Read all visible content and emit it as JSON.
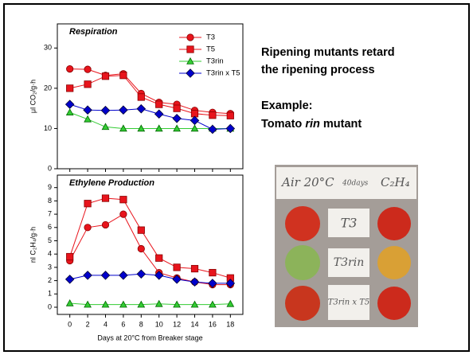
{
  "slide": {
    "heading": [
      "Ripening mutants retard",
      "the ripening process"
    ],
    "example": "Example:",
    "subject": [
      "Tomato ",
      "rin",
      " mutant"
    ]
  },
  "photo": {
    "labels": [
      "Air 20°C",
      "40days",
      "C₂H₄",
      "T3",
      "T3rin",
      "T3rin x T5"
    ]
  },
  "chart_data": [
    {
      "type": "line",
      "title": "Respiration",
      "y_label": "μl CO₂/g·h",
      "x": [
        0,
        2,
        4,
        6,
        8,
        10,
        12,
        14,
        16,
        18
      ],
      "xlim": [
        -1.4,
        19.4
      ],
      "xticks": [
        0,
        2,
        4,
        6,
        8,
        10,
        12,
        14,
        16,
        18
      ],
      "ylim": [
        0,
        36
      ],
      "yticks": [
        0,
        10,
        20,
        30
      ],
      "legend": "top-right",
      "series": [
        {
          "name": "T3",
          "color": "#e8141c",
          "marker": "circle",
          "values": [
            24.8,
            24.7,
            23.2,
            23.6,
            18.7,
            16.5,
            16,
            14.5,
            14,
            13.7
          ]
        },
        {
          "name": "T5",
          "color": "#e8141c",
          "marker": "square",
          "values": [
            20,
            21,
            23,
            23.2,
            17.8,
            16,
            15,
            13.7,
            13.3,
            13.2
          ]
        },
        {
          "name": "T3rin",
          "color": "#33cc33",
          "marker": "triangle",
          "values": [
            14,
            12.3,
            10.4,
            10,
            10,
            10,
            10,
            10,
            10,
            10
          ]
        },
        {
          "name": "T3rin x T5",
          "color": "#0000cc",
          "marker": "diamond",
          "values": [
            16,
            14.6,
            14.5,
            14.6,
            14.9,
            13.6,
            12.5,
            12,
            9.8,
            10
          ]
        }
      ]
    },
    {
      "type": "line",
      "title": "Ethylene Production",
      "y_label": "nl C₂H₄/g·h",
      "x_label": "Days at 20°C from Breaker stage",
      "x": [
        0,
        2,
        4,
        6,
        8,
        10,
        12,
        14,
        16,
        18
      ],
      "xlim": [
        -1.4,
        19.4
      ],
      "xticks": [
        0,
        2,
        4,
        6,
        8,
        10,
        12,
        14,
        16,
        18
      ],
      "ylim": [
        -0.54,
        9.94
      ],
      "yticks": [
        0,
        1,
        2,
        3,
        4,
        5,
        6,
        7,
        8,
        9
      ],
      "series": [
        {
          "color": "#e8141c",
          "marker": "circle",
          "values": [
            3.5,
            6.0,
            6.2,
            7.0,
            4.4,
            2.6,
            2.2,
            1.9,
            1.7,
            1.7
          ]
        },
        {
          "color": "#e8141c",
          "marker": "square",
          "values": [
            3.8,
            7.8,
            8.2,
            8.1,
            5.8,
            3.7,
            3.0,
            2.9,
            2.6,
            2.2
          ]
        },
        {
          "color": "#33cc33",
          "marker": "triangle",
          "values": [
            0.3,
            0.2,
            0.2,
            0.2,
            0.2,
            0.25,
            0.2,
            0.2,
            0.2,
            0.25
          ]
        },
        {
          "color": "#0000cc",
          "marker": "diamond",
          "values": [
            2.1,
            2.4,
            2.4,
            2.4,
            2.5,
            2.4,
            2.1,
            1.9,
            1.8,
            1.8
          ]
        }
      ]
    }
  ]
}
